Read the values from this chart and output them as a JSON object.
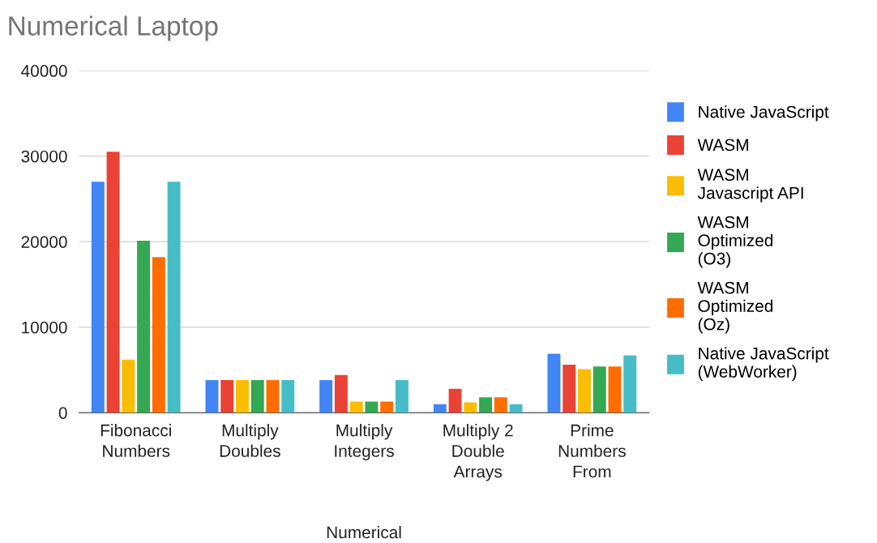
{
  "chart_data": {
    "type": "bar",
    "title": "Numerical Laptop",
    "xlabel": "Numerical",
    "categories": [
      "Fibonacci\nNumbers",
      "Multiply\nDoubles",
      "Multiply\nIntegers",
      "Multiply 2\nDouble\nArrays",
      "Prime\nNumbers\nFrom"
    ],
    "series": [
      {
        "name": "Native JavaScript",
        "color": "#4285f4",
        "values": [
          27000,
          3800,
          3800,
          1000,
          6900
        ]
      },
      {
        "name": "WASM",
        "color": "#ea4335",
        "values": [
          30500,
          3800,
          4400,
          2800,
          5600
        ]
      },
      {
        "name": "WASM\nJavascript API",
        "color": "#fbbc04",
        "values": [
          6200,
          3800,
          1300,
          1200,
          5100
        ]
      },
      {
        "name": "WASM\nOptimized\n(O3)",
        "color": "#34a853",
        "values": [
          20100,
          3800,
          1300,
          1800,
          5400
        ]
      },
      {
        "name": "WASM\nOptimized\n(Oz)",
        "color": "#ff6d01",
        "values": [
          18200,
          3800,
          1300,
          1800,
          5400
        ]
      },
      {
        "name": "Native JavaScript\n(WebWorker)",
        "color": "#46bdc6",
        "values": [
          27000,
          3800,
          3800,
          1000,
          6700
        ]
      }
    ],
    "ylim": [
      0,
      40000
    ],
    "yticks": [
      0,
      10000,
      20000,
      30000,
      40000
    ],
    "grid": "y",
    "legend": "right"
  }
}
